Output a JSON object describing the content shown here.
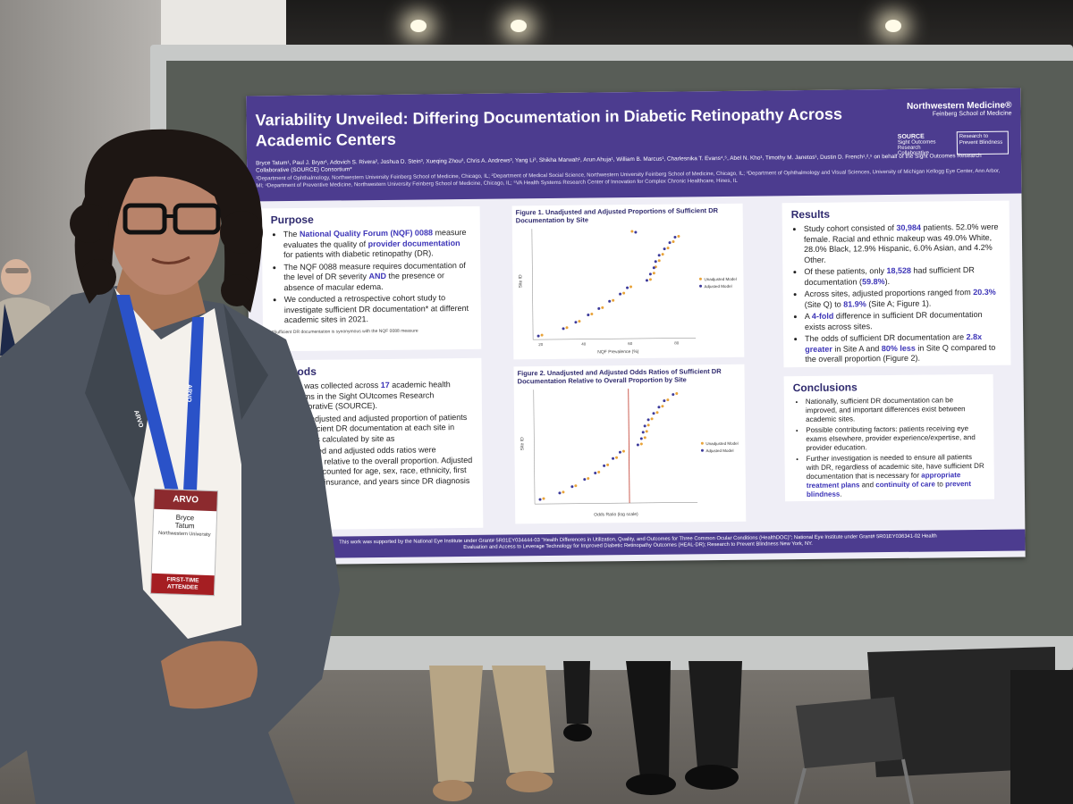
{
  "poster": {
    "title": "Variability Unveiled: Differing Documentation in Diabetic Retinopathy Across Academic Centers",
    "authors": "Bryce Tatum¹, Paul J. Bryar¹, Adovich S. Rivera², Joshua D. Stein³, Xueqing Zhou³, Chris A. Andrews³, Yang Li³, Shikha Marwah¹, Arun Ahuja¹, William B. Marcus¹, Charlesnika T. Evans⁴,⁵, Abel N. Kho¹, Timothy M. Janetos¹, Dustin D. French¹,²,⁵ on behalf of the Sight Outcomes Research Collaborative (SOURCE) Consortium*",
    "affiliations": "¹Department of Ophthalmology, Northwestern University Feinberg School of Medicine, Chicago, IL; ²Department of Medical Social Science, Northwestern University Feinberg School of Medicine, Chicago, IL; ³Department of Ophthalmology and Visual Sciences, University of Michigan Kellogg Eye Center, Ann Arbor, MI; ⁴Department of Preventive Medicine, Northwestern University Feinberg School of Medicine, Chicago, IL; ⁵VA Health Systems Research Center of Innovation for Complex Chronic Healthcare, Hines, IL",
    "logo_main": "Northwestern Medicine®",
    "logo_sub": "Feinberg School of Medicine",
    "source_logo": "SOURCE",
    "source_sub": "Sight Outcomes Research Collaborative",
    "rpb_logo": "Research to Prevent Blindness",
    "purpose": {
      "heading": "Purpose",
      "b1_pre": "The ",
      "b1_hl": "National Quality Forum (NQF) 0088",
      "b1_mid": " measure evaluates the quality of ",
      "b1_hl2": "provider documentation",
      "b1_post": " for patients with diabetic retinopathy (DR).",
      "b2_pre": "The NQF 0088 measure requires documentation of the level of DR severity ",
      "b2_hl": "AND",
      "b2_post": " the presence or absence of macular edema.",
      "b3": "We conducted a retrospective cohort study to investigate sufficient DR documentation* at different academic sites in 2021.",
      "footnote": "*Sufficient DR documentation is synonymous with the NQF 0088 measure"
    },
    "methods": {
      "heading": "Methods",
      "b1_pre": "Data was collected across ",
      "b1_hl": "17",
      "b1_post": " academic health systems in the Sight OUtcomes Research CollaborativE (SOURCE).",
      "b2": "The unadjusted and adjusted proportion of patients with sufficient DR documentation at each site in 2021 was calculated by site as",
      "b3": "Unadjusted and adjusted odds ratios were calculated relative to the overall proportion. Adjusted models accounted for age, sex, race, ethnicity, first DR stage, insurance, and years since DR diagnosis"
    },
    "figure1": {
      "title": "Figure 1. Unadjusted and Adjusted Proportions of Sufficient DR Documentation by Site",
      "xlabel": "NQF Prevalence (%)",
      "ylabel": "Site ID",
      "legend_unadj": "Unadjusted Model",
      "legend_adj": "Adjusted Model",
      "xticks": [
        "20",
        "40",
        "60",
        "80"
      ]
    },
    "figure2": {
      "title": "Figure 2. Unadjusted and Adjusted Odds Ratios of Sufficient DR Documentation Relative to Overall Proportion by Site",
      "xlabel": "Odds Ratio (log scale)",
      "ylabel": "Site ID",
      "legend_unadj": "Unadjusted Model",
      "legend_adj": "Adjusted Model"
    },
    "results": {
      "heading": "Results",
      "b1_pre": "Study cohort consisted of ",
      "b1_hl": "30,984",
      "b1_post": " patients. 52.0% were female. Racial and ethnic makeup was 49.0% White, 28.0% Black, 12.9% Hispanic, 6.0% Asian, and 4.2% Other.",
      "b2_pre": "Of these patients, only ",
      "b2_hl": "18,528",
      "b2_mid": " had sufficient DR documentation (",
      "b2_hl2": "59.8%",
      "b2_post": ").",
      "b3_pre": "Across sites, adjusted proportions ranged from ",
      "b3_hl": "20.3%",
      "b3_mid": " (Site Q) to ",
      "b3_hl2": "81.9%",
      "b3_post": " (Site A; Figure 1).",
      "b4_pre": "A ",
      "b4_hl": "4-fold",
      "b4_post": " difference in sufficient DR documentation exists across sites.",
      "b5_pre": "The odds of sufficient DR documentation are ",
      "b5_hl": "2.8x greater",
      "b5_mid": " in Site A and ",
      "b5_hl2": "80% less",
      "b5_post": " in Site Q compared to the overall proportion (Figure 2)."
    },
    "conclusions": {
      "heading": "Conclusions",
      "b1": "Nationally, sufficient DR documentation can be improved, and important differences exist between academic sites.",
      "b2": "Possible contributing factors: patients receiving eye exams elsewhere, provider experience/expertise, and provider education.",
      "b3_pre": "Further investigation is needed to ensure all patients with DR, regardless of academic site, have sufficient DR documentation that is necessary for ",
      "b3_hl": "appropriate treatment plans",
      "b3_mid": " and ",
      "b3_hl2": "continuity of care",
      "b3_mid2": " to ",
      "b3_hl3": "prevent blindness",
      "b3_post": "."
    },
    "footer": "This work was supported by the National Eye Institute under Grant# 5R01EY034444-03 \"Health Differences in Utilization, Quality, and Outcomes for Three Common Ocular Conditions (HealthDOC)\"; National Eye Institute under Grant# 5R01EY036341-02 Health Evaluation and Access to Leverage Technology for Improved Diabetic Retinopathy Outcomes (HEAL-DR); Research to Prevent Blindness New York, NY."
  },
  "badge": {
    "event": "ARVO",
    "first_name": "Bryce",
    "last_name": "Tatum",
    "org": "Northwestern University",
    "tag": "FIRST-TIME ATTENDEE"
  },
  "lanyard": {
    "text": "ARVO"
  },
  "colors": {
    "poster_header": "#4c3c8f",
    "highlight": "#3d35b8",
    "badge_red": "#a51e22",
    "lanyard": "#2a52c8"
  }
}
